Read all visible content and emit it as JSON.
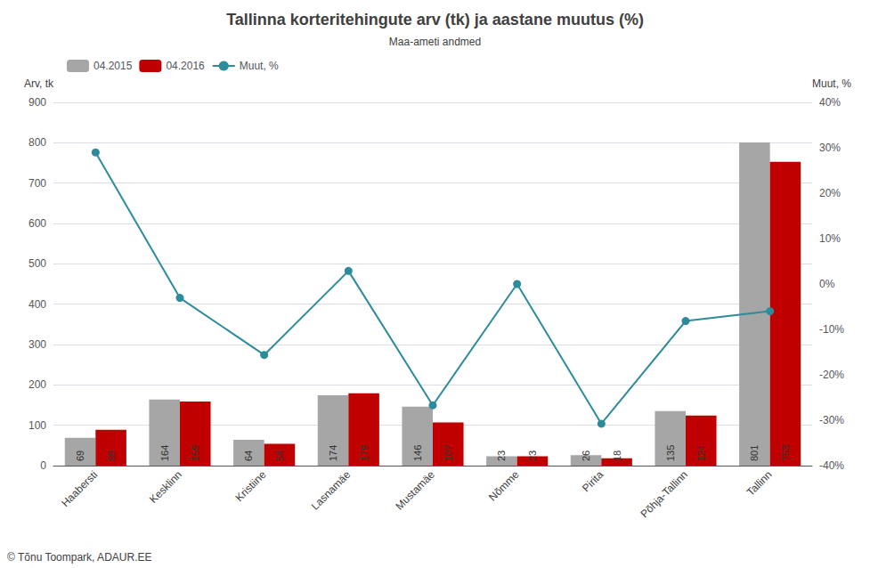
{
  "chart_data": {
    "type": "bar",
    "title": "Tallinna korteritehingute arv (tk) ja aastane muutus (%)",
    "subtitle": "Maa-ameti andmed",
    "ylabel": "Arv, tk",
    "y2label": "Muut, %",
    "categories": [
      "Haabersti",
      "Kesklinn",
      "Kristiine",
      "Lasnamäe",
      "Mustamäe",
      "Nõmme",
      "Pirita",
      "Põhja-Tallinn",
      "Tallinn"
    ],
    "series": [
      {
        "name": "04.2015",
        "color": "#a6a6a6",
        "data_labels": true,
        "values": [
          69,
          164,
          64,
          174,
          146,
          23,
          26,
          135,
          801
        ]
      },
      {
        "name": "04.2016",
        "color": "#c00000",
        "data_labels": true,
        "values": [
          89,
          159,
          54,
          179,
          107,
          23,
          18,
          124,
          753
        ]
      },
      {
        "name": "Muut, %",
        "type": "line",
        "color": "#2e8b9a",
        "marker": "o",
        "axis": "y2",
        "values": [
          28.99,
          -3.05,
          -15.625,
          2.87,
          -26.71,
          0.0,
          -30.77,
          -8.15,
          -5.99
        ]
      }
    ],
    "ylim": [
      0,
      900
    ],
    "yticks": [
      0,
      100,
      200,
      300,
      400,
      500,
      600,
      700,
      800,
      900
    ],
    "y2lim": [
      -40,
      40
    ],
    "y2ticks": [
      {
        "value": -40,
        "label": "-40%"
      },
      {
        "value": -30,
        "label": "-30%"
      },
      {
        "value": -20,
        "label": "-20%"
      },
      {
        "value": -10,
        "label": "-10%"
      },
      {
        "value": 0,
        "label": "0%"
      },
      {
        "value": 10,
        "label": "10%"
      },
      {
        "value": 20,
        "label": "20%"
      },
      {
        "value": 30,
        "label": "30%"
      },
      {
        "value": 40,
        "label": "40%"
      }
    ],
    "grid": true,
    "legend": "upper left",
    "annotations": [
      "© Tõnu Toompark, ADAUR.EE"
    ]
  }
}
